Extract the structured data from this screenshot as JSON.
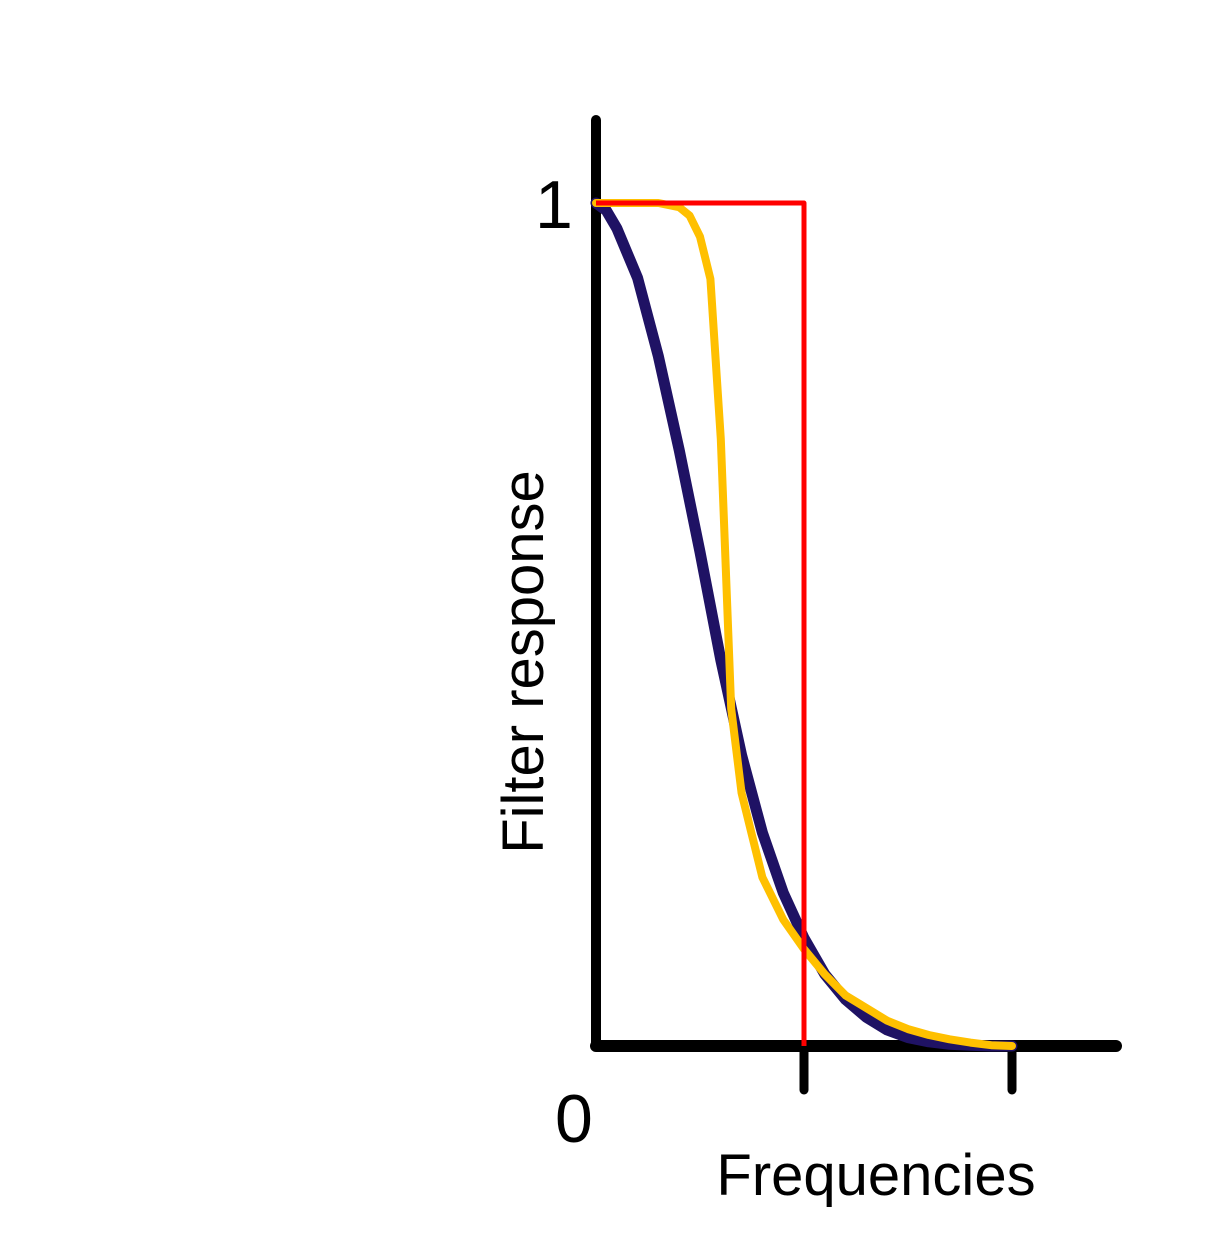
{
  "chart_data": {
    "type": "line",
    "xlabel": "Frequencies",
    "ylabel": "Filter response",
    "x_tick_labels": [],
    "y_tick_labels": [
      "0",
      "1"
    ],
    "xlim": [
      0,
      2.5
    ],
    "ylim": [
      0,
      1
    ],
    "x_ticks": [
      1,
      2
    ],
    "y_ticks": [
      0,
      1
    ],
    "grid": false,
    "legend": "none",
    "series": [
      {
        "color": "#1f1264",
        "x": [
          0,
          0.05,
          0.1,
          0.2,
          0.3,
          0.4,
          0.5,
          0.6,
          0.7,
          0.8,
          0.9,
          1.0,
          1.1,
          1.2,
          1.3,
          1.4,
          1.5,
          1.6,
          1.7,
          1.8,
          1.9,
          2.0
        ],
        "y": [
          1.0,
          0.991,
          0.97,
          0.911,
          0.818,
          0.707,
          0.586,
          0.458,
          0.345,
          0.253,
          0.182,
          0.128,
          0.085,
          0.055,
          0.034,
          0.019,
          0.01,
          0.005,
          0.002,
          0.001,
          0.0,
          0.0
        ]
      },
      {
        "color": "#ffc000",
        "x": [
          0,
          0.3,
          0.4,
          0.45,
          0.5,
          0.55,
          0.6,
          0.65,
          0.7,
          0.75,
          0.8,
          0.9,
          1.0,
          1.1,
          1.2,
          1.3,
          1.4,
          1.5,
          1.6,
          1.7,
          1.8,
          1.9,
          2.0
        ],
        "y": [
          1.0,
          1.0,
          0.995,
          0.985,
          0.96,
          0.91,
          0.72,
          0.4,
          0.3,
          0.25,
          0.2,
          0.15,
          0.115,
          0.085,
          0.06,
          0.045,
          0.03,
          0.02,
          0.013,
          0.008,
          0.004,
          0.001,
          0.0
        ]
      },
      {
        "color": "#ff0000",
        "x": [
          0,
          1,
          1,
          1.0
        ],
        "y": [
          1,
          1,
          0,
          0
        ]
      }
    ]
  }
}
